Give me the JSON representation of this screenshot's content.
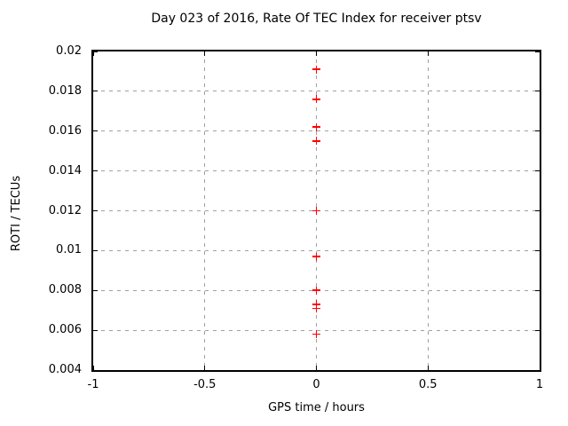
{
  "chart_data": {
    "type": "scatter",
    "title": "Day 023 of 2016, Rate Of TEC Index for receiver ptsv",
    "xlabel": "GPS time / hours",
    "ylabel": "ROTI / TECUs",
    "xlim": [
      -1,
      1
    ],
    "ylim": [
      0.004,
      0.02
    ],
    "xticks": {
      "values": [
        -1,
        -0.5,
        0,
        0.5,
        1
      ],
      "labels": [
        "-1",
        "-0.5",
        "0",
        "0.5",
        "1"
      ]
    },
    "yticks": {
      "values": [
        0.004,
        0.006,
        0.008,
        0.01,
        0.012,
        0.014,
        0.016,
        0.018,
        0.02
      ],
      "labels": [
        "0.004",
        "0.006",
        "0.008",
        "0.01",
        "0.012",
        "0.014",
        "0.016",
        "0.018",
        "0.02"
      ]
    },
    "grid": true,
    "legend_position": "none",
    "series": [
      {
        "name": "",
        "marker": "plus",
        "color": "#ff0000",
        "points": [
          {
            "x": 0,
            "y": 0.0191
          },
          {
            "x": 0,
            "y": 0.0176
          },
          {
            "x": 0,
            "y": 0.0162
          },
          {
            "x": 0,
            "y": 0.0155
          },
          {
            "x": 0,
            "y": 0.012
          },
          {
            "x": 0,
            "y": 0.0097
          },
          {
            "x": 0,
            "y": 0.008
          },
          {
            "x": 0,
            "y": 0.0073
          },
          {
            "x": 0,
            "y": 0.0071
          },
          {
            "x": 0,
            "y": 0.0058
          }
        ]
      }
    ]
  },
  "colors": {
    "background": "#ffffff",
    "axis": "#000000",
    "grid": "#a0a0a0",
    "marker": "#ff0000",
    "text": "#000000"
  }
}
